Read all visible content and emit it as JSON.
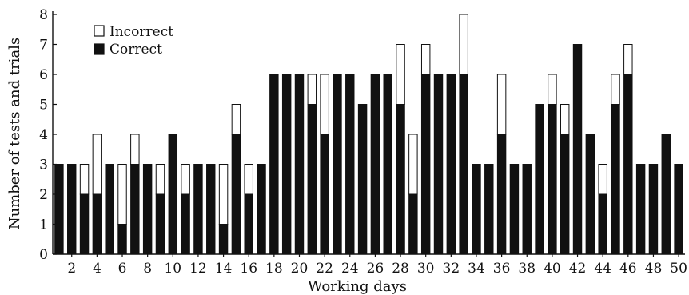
{
  "chart_data": {
    "type": "bar",
    "stacked": true,
    "title": "",
    "xlabel": "Working days",
    "ylabel": "Number of tests and trials",
    "ylim": [
      0,
      8
    ],
    "yticks": [
      0,
      1,
      2,
      3,
      4,
      5,
      6,
      7,
      8
    ],
    "xlim": [
      1,
      50
    ],
    "xticks": [
      2,
      4,
      6,
      8,
      10,
      12,
      14,
      16,
      18,
      20,
      22,
      24,
      26,
      28,
      30,
      32,
      34,
      36,
      38,
      40,
      42,
      44,
      46,
      48,
      50
    ],
    "grid": false,
    "legend": {
      "position": "top-left"
    },
    "categories": [
      1,
      2,
      3,
      4,
      5,
      6,
      7,
      8,
      9,
      10,
      11,
      12,
      13,
      14,
      15,
      16,
      17,
      18,
      19,
      20,
      21,
      22,
      23,
      24,
      25,
      26,
      27,
      28,
      29,
      30,
      31,
      32,
      33,
      34,
      35,
      36,
      37,
      38,
      39,
      40,
      41,
      42,
      43,
      44,
      45,
      46,
      47,
      48,
      49,
      50
    ],
    "series": [
      {
        "name": "Correct",
        "color": "#111111",
        "values": [
          3,
          3,
          2,
          2,
          3,
          1,
          3,
          3,
          2,
          4,
          2,
          3,
          3,
          1,
          4,
          2,
          3,
          6,
          6,
          6,
          5,
          4,
          6,
          6,
          5,
          6,
          6,
          5,
          2,
          6,
          6,
          6,
          6,
          3,
          3,
          4,
          3,
          3,
          5,
          5,
          4,
          7,
          4,
          2,
          5,
          6,
          3,
          3,
          4,
          3
        ]
      },
      {
        "name": "Incorrect",
        "color": "#ffffff",
        "values": [
          0,
          0,
          1,
          2,
          0,
          2,
          1,
          0,
          1,
          0,
          1,
          0,
          0,
          2,
          1,
          1,
          0,
          0,
          0,
          0,
          1,
          2,
          0,
          0,
          0,
          0,
          0,
          2,
          2,
          1,
          0,
          0,
          2,
          0,
          0,
          2,
          0,
          0,
          0,
          1,
          1,
          0,
          0,
          1,
          1,
          1,
          0,
          0,
          0,
          0
        ]
      }
    ]
  }
}
